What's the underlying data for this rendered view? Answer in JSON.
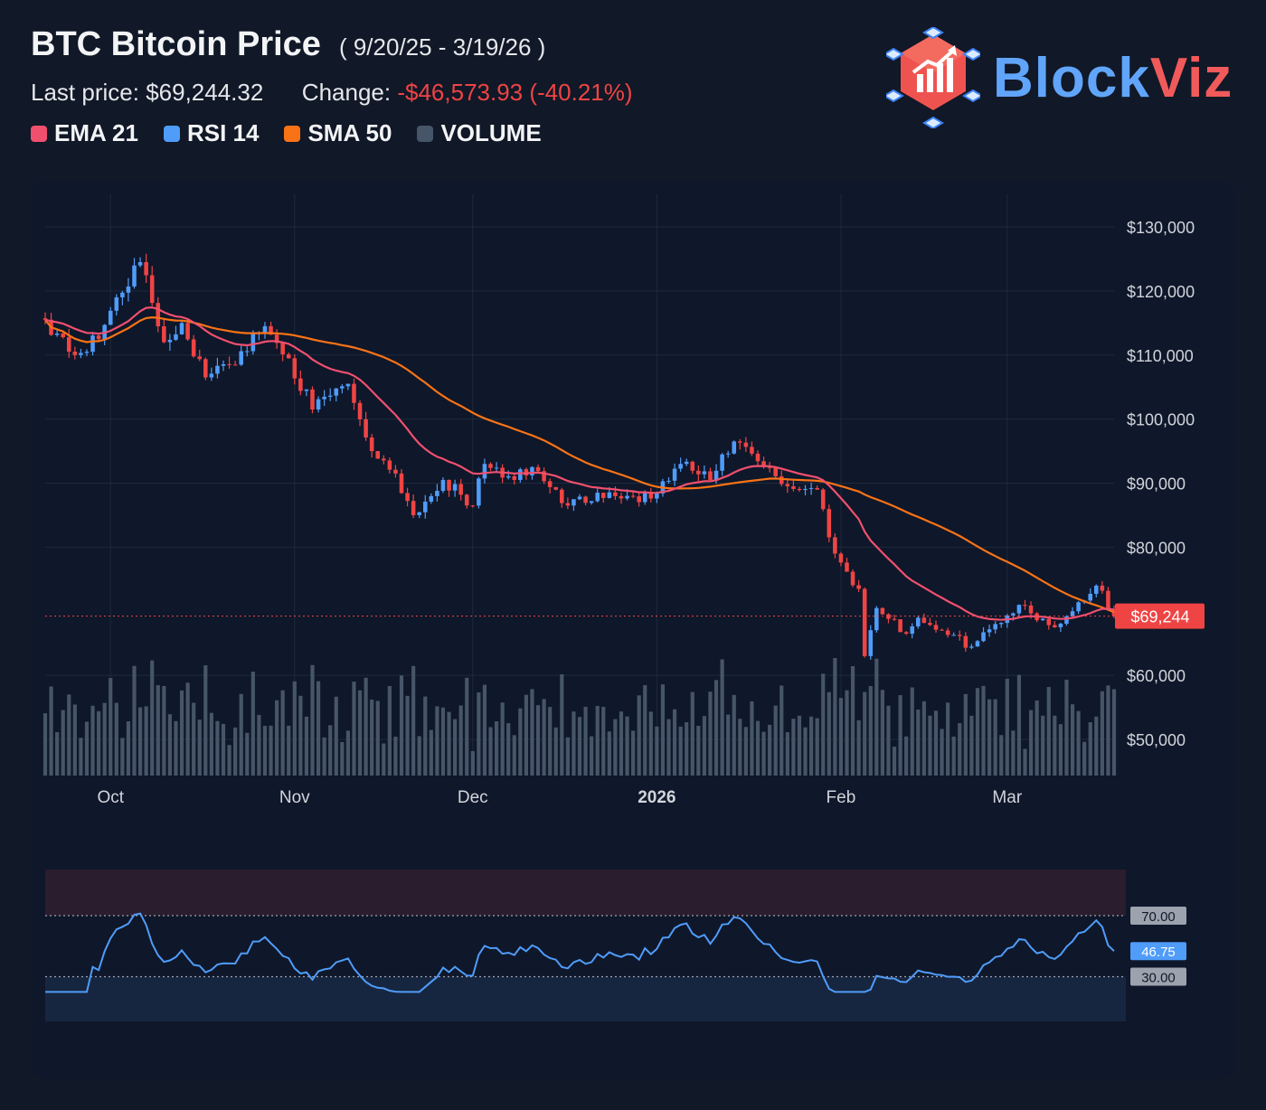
{
  "header": {
    "title": "BTC Bitcoin Price",
    "range": "( 9/20/25 - 3/19/26 )",
    "last_label": "Last price:",
    "last_value": "$69,244.32",
    "change_label": "Change:",
    "change_value": "-$46,573.93 (-40.21%)"
  },
  "legend": [
    {
      "label": "EMA 21",
      "color": "#f0506e"
    },
    {
      "label": "RSI 14",
      "color": "#4f9cf9"
    },
    {
      "label": "SMA 50",
      "color": "#f97316"
    },
    {
      "label": "VOLUME",
      "color": "#475569"
    }
  ],
  "logo": {
    "text_a": "Block",
    "text_b": "Viz"
  },
  "colors": {
    "up": "#4f9cf9",
    "down": "#ef4444",
    "ema": "#f0506e",
    "sma": "#f97316",
    "volume": "#475569",
    "rsi": "#4f9cf9",
    "grid": "#1f2a3c",
    "axis_text": "#d1d5db"
  },
  "chart_data": [
    {
      "type": "candlestick",
      "title": "BTC Bitcoin Price",
      "date_range": [
        "2025-09-20",
        "2026-03-19"
      ],
      "ylim": [
        45000,
        135000
      ],
      "y_ticks": [
        {
          "value": 130000,
          "label": "$130,000"
        },
        {
          "value": 120000,
          "label": "$120,000"
        },
        {
          "value": 110000,
          "label": "$110,000"
        },
        {
          "value": 100000,
          "label": "$100,000"
        },
        {
          "value": 90000,
          "label": "$90,000"
        },
        {
          "value": 80000,
          "label": "$80,000"
        },
        {
          "value": 60000,
          "label": "$60,000"
        },
        {
          "value": 50000,
          "label": "$50,000"
        }
      ],
      "x_ticks": [
        {
          "date": "2025-10-01",
          "label": "Oct",
          "bold": false
        },
        {
          "date": "2025-11-01",
          "label": "Nov",
          "bold": false
        },
        {
          "date": "2025-12-01",
          "label": "Dec",
          "bold": false
        },
        {
          "date": "2026-01-01",
          "label": "2026",
          "bold": true
        },
        {
          "date": "2026-02-01",
          "label": "Feb",
          "bold": false
        },
        {
          "date": "2026-03-01",
          "label": "Mar",
          "bold": false
        }
      ],
      "last_price": {
        "value": 69244.32,
        "label": "$69,244"
      },
      "close_anchors": [
        [
          "2025-09-20",
          115500
        ],
        [
          "2025-09-25",
          110000
        ],
        [
          "2025-09-29",
          112500
        ],
        [
          "2025-10-02",
          119000
        ],
        [
          "2025-10-06",
          124500
        ],
        [
          "2025-10-10",
          112000
        ],
        [
          "2025-10-13",
          115000
        ],
        [
          "2025-10-17",
          106500
        ],
        [
          "2025-10-21",
          108500
        ],
        [
          "2025-10-27",
          114500
        ],
        [
          "2025-10-31",
          109500
        ],
        [
          "2025-11-04",
          101500
        ],
        [
          "2025-11-10",
          105500
        ],
        [
          "2025-11-14",
          95000
        ],
        [
          "2025-11-18",
          91500
        ],
        [
          "2025-11-21",
          85000
        ],
        [
          "2025-11-26",
          90500
        ],
        [
          "2025-12-01",
          86500
        ],
        [
          "2025-12-03",
          93000
        ],
        [
          "2025-12-08",
          90500
        ],
        [
          "2025-12-11",
          92500
        ],
        [
          "2025-12-17",
          86500
        ],
        [
          "2025-12-22",
          88500
        ],
        [
          "2025-12-31",
          87600
        ],
        [
          "2026-01-05",
          93000
        ],
        [
          "2026-01-10",
          90500
        ],
        [
          "2026-01-14",
          96500
        ],
        [
          "2026-01-19",
          92500
        ],
        [
          "2026-01-23",
          89500
        ],
        [
          "2026-01-28",
          89000
        ],
        [
          "2026-01-31",
          79000
        ],
        [
          "2026-02-04",
          73500
        ],
        [
          "2026-02-05",
          63000
        ],
        [
          "2026-02-07",
          70500
        ],
        [
          "2026-02-12",
          66500
        ],
        [
          "2026-02-14",
          69000
        ],
        [
          "2026-02-18",
          67000
        ],
        [
          "2026-02-23",
          64500
        ],
        [
          "2026-02-27",
          68000
        ],
        [
          "2026-03-03",
          71000
        ],
        [
          "2026-03-09",
          67500
        ],
        [
          "2026-03-16",
          74000
        ],
        [
          "2026-03-19",
          69244.32
        ]
      ]
    },
    {
      "type": "line",
      "title": "RSI 14",
      "ylim": [
        20,
        80
      ],
      "levels": [
        {
          "value": 70,
          "label": "70.00"
        },
        {
          "value": 30,
          "label": "30.00"
        }
      ],
      "last_value": {
        "value": 46.75,
        "label": "46.75"
      }
    }
  ]
}
